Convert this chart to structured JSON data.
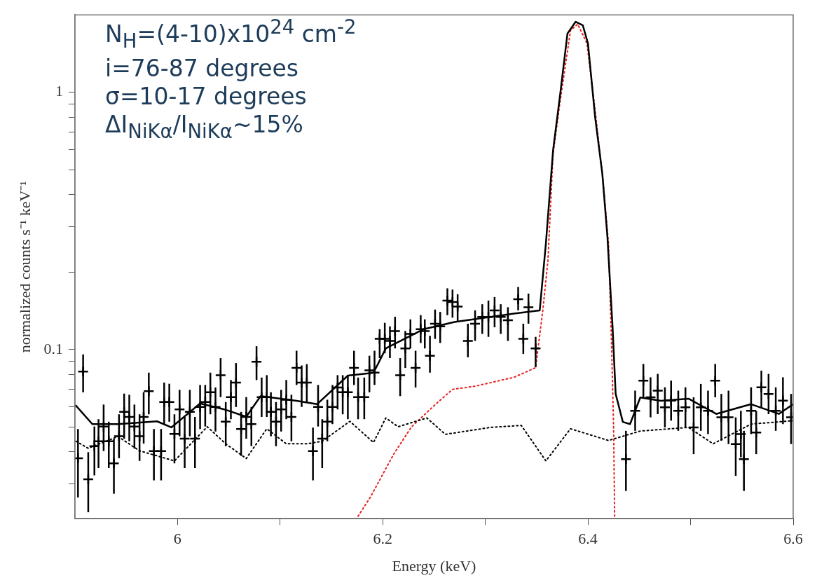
{
  "chart_data": {
    "type": "line",
    "xlabel": "Energy (keV)",
    "ylabel": "normalized counts s⁻¹ keV⁻¹",
    "annotations": [
      "N$_{H}$=(4-10)x10$^{24}$ cm$^{-2}$",
      "i=76-87 degrees",
      "σ=10-17 degrees",
      "ΔI$_{NiKα}$/I$_{NiKα}$~15%"
    ],
    "xlim": [
      5.9,
      6.6
    ],
    "xticks": [
      6,
      {
        "value": 6.1,
        "label": null
      },
      6.2,
      {
        "value": 6.3,
        "label": null
      },
      6.4,
      {
        "value": 6.5,
        "label": null
      },
      6.6
    ],
    "ylim": [
      0.022,
      2
    ],
    "yticks": [
      {
        "value": 0.03,
        "label": null
      },
      {
        "value": 0.04,
        "label": null
      },
      {
        "value": 0.05,
        "label": null
      },
      {
        "value": 0.06,
        "label": null
      },
      {
        "value": 0.07,
        "label": null
      },
      {
        "value": 0.08,
        "label": null
      },
      {
        "value": 0.09,
        "label": null
      },
      0.1,
      {
        "value": 0.2,
        "label": null
      },
      {
        "value": 0.3,
        "label": null
      },
      {
        "value": 0.4,
        "label": null
      },
      {
        "value": 0.5,
        "label": null
      },
      {
        "value": 0.6,
        "label": null
      },
      {
        "value": 0.7,
        "label": null
      },
      {
        "value": 0.8,
        "label": null
      },
      {
        "value": 0.9,
        "label": null
      },
      1
    ],
    "log": "y",
    "grid": false,
    "legend": false,
    "series": [
      {
        "type": "scatter",
        "color": "#000000",
        "marker": "cross",
        "x": [
          5.903,
          5.908,
          5.913,
          5.919,
          5.923,
          5.928,
          5.933,
          5.938,
          5.943,
          5.948,
          5.953,
          5.958,
          5.963,
          5.967,
          5.972,
          5.977,
          5.984,
          5.987,
          5.992,
          5.997,
          6.002,
          6.007,
          6.012,
          6.017,
          6.022,
          6.027,
          6.032,
          6.037,
          6.042,
          6.047,
          6.052,
          6.057,
          6.062,
          6.067,
          6.072,
          6.077,
          6.082,
          6.087,
          6.091,
          6.096,
          6.101,
          6.106,
          6.111,
          6.116,
          6.121,
          6.126,
          6.132,
          6.137,
          6.141,
          6.146,
          6.151,
          6.156,
          6.161,
          6.166,
          6.172,
          6.176,
          6.182,
          6.187,
          6.192,
          6.197,
          6.202,
          6.207,
          6.212,
          6.217,
          6.222,
          6.227,
          6.232,
          6.237,
          6.241,
          6.246,
          6.251,
          6.256,
          6.263,
          6.268,
          6.273,
          6.283,
          6.29,
          6.297,
          6.303,
          6.309,
          6.315,
          6.322,
          6.332,
          6.337,
          6.342,
          6.349,
          6.437,
          6.446,
          6.454,
          6.461,
          6.468,
          6.475,
          6.481,
          6.488,
          6.495,
          6.503,
          6.51,
          6.517,
          6.524,
          6.53,
          6.537,
          6.544,
          6.549,
          6.552,
          6.559,
          6.564,
          6.569,
          6.576,
          6.583,
          6.59,
          6.598
        ],
        "values": [
          0.0378,
          0.0821,
          0.0313,
          0.0421,
          0.044,
          0.0502,
          0.044,
          0.0361,
          0.046,
          0.0572,
          0.0547,
          0.0502,
          0.046,
          0.0547,
          0.0689,
          0.0403,
          0.0403,
          0.0625,
          0.0625,
          0.047,
          0.0585,
          0.045,
          0.0572,
          0.045,
          0.0598,
          0.0625,
          0.0682,
          0.0598,
          0.0795,
          0.0524,
          0.0653,
          0.0744,
          0.0491,
          0.0547,
          0.0513,
          0.0896,
          0.0653,
          0.0653,
          0.0572,
          0.0524,
          0.0585,
          0.0638,
          0.0547,
          0.0848,
          0.0744,
          0.0744,
          0.0403,
          0.0598,
          0.045,
          0.0524,
          0.0598,
          0.0712,
          0.0682,
          0.0682,
          0.0848,
          0.0653,
          0.0653,
          0.083,
          0.0813,
          0.11,
          0.11,
          0.108,
          0.118,
          0.0795,
          0.101,
          0.115,
          0.0848,
          0.12,
          0.118,
          0.0946,
          0.126,
          0.123,
          0.155,
          0.153,
          0.147,
          0.108,
          0.126,
          0.134,
          0.134,
          0.142,
          0.134,
          0.13,
          0.157,
          0.11,
          0.146,
          0.101,
          0.0375,
          0.0578,
          0.0757,
          0.0652,
          0.0692,
          0.0596,
          0.0633,
          0.0578,
          0.0596,
          0.0498,
          0.0596,
          0.0578,
          0.0757,
          0.0545,
          0.0545,
          0.0429,
          0.0469,
          0.0375,
          0.0578,
          0.0476,
          0.0713,
          0.0672,
          0.0578,
          0.0633,
          0.0545
        ],
        "errors": [
          [
            0.0266,
            0.0491
          ],
          [
            0.0682,
            0.0957
          ],
          [
            0.0233,
            0.0399
          ],
          [
            0.0324,
            0.0502
          ],
          [
            0.0346,
            0.0536
          ],
          [
            0.0403,
            0.0611
          ],
          [
            0.0346,
            0.0524
          ],
          [
            0.0275,
            0.045
          ],
          [
            0.0378,
            0.056
          ],
          [
            0.045,
            0.0674
          ],
          [
            0.044,
            0.0667
          ],
          [
            0.0412,
            0.0611
          ],
          [
            0.0369,
            0.056
          ],
          [
            0.0431,
            0.0682
          ],
          [
            0.056,
            0.0813
          ],
          [
            0.031,
            0.0491
          ],
          [
            0.031,
            0.0491
          ],
          [
            0.0513,
            0.0744
          ],
          [
            0.0524,
            0.0736
          ],
          [
            0.0361,
            0.056
          ],
          [
            0.046,
            0.0697
          ],
          [
            0.0346,
            0.0547
          ],
          [
            0.046,
            0.0697
          ],
          [
            0.0346,
            0.0547
          ],
          [
            0.0491,
            0.0728
          ],
          [
            0.0502,
            0.0728
          ],
          [
            0.056,
            0.0813
          ],
          [
            0.048,
            0.0712
          ],
          [
            0.0653,
            0.0926
          ],
          [
            0.0421,
            0.0625
          ],
          [
            0.0536,
            0.0761
          ],
          [
            0.0598,
            0.0886
          ],
          [
            0.0386,
            0.0572
          ],
          [
            0.045,
            0.0653
          ],
          [
            0.0421,
            0.0598
          ],
          [
            0.0761,
            0.103
          ],
          [
            0.0547,
            0.0778
          ],
          [
            0.0547,
            0.0795
          ],
          [
            0.046,
            0.0682
          ],
          [
            0.0421,
            0.0625
          ],
          [
            0.048,
            0.0697
          ],
          [
            0.0536,
            0.0761
          ],
          [
            0.044,
            0.0667
          ],
          [
            0.0728,
            0.0989
          ],
          [
            0.0598,
            0.0867
          ],
          [
            0.0625,
            0.0877
          ],
          [
            0.031,
            0.0497
          ],
          [
            0.0502,
            0.0728
          ],
          [
            0.0346,
            0.0536
          ],
          [
            0.044,
            0.0638
          ],
          [
            0.0513,
            0.0728
          ],
          [
            0.0585,
            0.0795
          ],
          [
            0.056,
            0.0795
          ],
          [
            0.0536,
            0.0795
          ],
          [
            0.0728,
            0.0989
          ],
          [
            0.0536,
            0.0778
          ],
          [
            0.0536,
            0.0778
          ],
          [
            0.0682,
            0.0946
          ],
          [
            0.0728,
            0.0989
          ],
          [
            0.0926,
            0.12
          ],
          [
            0.0967,
            0.127
          ],
          [
            0.0926,
            0.123
          ],
          [
            0.101,
            0.134
          ],
          [
            0.0659,
            0.0926
          ],
          [
            0.0848,
            0.118
          ],
          [
            0.101,
            0.131
          ],
          [
            0.0712,
            0.0989
          ],
          [
            0.106,
            0.136
          ],
          [
            0.101,
            0.131
          ],
          [
            0.0813,
            0.113
          ],
          [
            0.11,
            0.143
          ],
          [
            0.106,
            0.14
          ],
          [
            0.136,
            0.173
          ],
          [
            0.133,
            0.171
          ],
          [
            0.129,
            0.164
          ],
          [
            0.0933,
            0.126
          ],
          [
            0.108,
            0.142
          ],
          [
            0.115,
            0.15
          ],
          [
            0.112,
            0.155
          ],
          [
            0.122,
            0.16
          ],
          [
            0.115,
            0.15
          ],
          [
            0.108,
            0.146
          ],
          [
            0.142,
            0.175
          ],
          [
            0.0961,
            0.126
          ],
          [
            0.126,
            0.165
          ],
          [
            0.0853,
            0.112
          ],
          [
            0.0282,
            0.0483
          ],
          [
            0.0483,
            0.0692
          ],
          [
            0.0652,
            0.0879
          ],
          [
            0.0545,
            0.078
          ],
          [
            0.0561,
            0.0804
          ],
          [
            0.0498,
            0.0713
          ],
          [
            0.0529,
            0.0757
          ],
          [
            0.0483,
            0.0692
          ],
          [
            0.0498,
            0.0713
          ],
          [
            0.0392,
            0.0652
          ],
          [
            0.0483,
            0.0735
          ],
          [
            0.0469,
            0.0692
          ],
          [
            0.0652,
            0.0879
          ],
          [
            0.0442,
            0.0672
          ],
          [
            0.0429,
            0.0692
          ],
          [
            0.0323,
            0.0545
          ],
          [
            0.0381,
            0.0578
          ],
          [
            0.0282,
            0.0483
          ],
          [
            0.0469,
            0.0713
          ],
          [
            0.0392,
            0.0578
          ],
          [
            0.0596,
            0.0828
          ],
          [
            0.0561,
            0.0804
          ],
          [
            0.0483,
            0.0713
          ],
          [
            0.0513,
            0.078
          ],
          [
            0.0429,
            0.0672
          ]
        ]
      },
      {
        "color": "#000000",
        "line_style": "solid",
        "x": [
          5.901,
          5.917,
          5.942,
          5.98,
          5.994,
          6.022,
          6.047,
          6.067,
          6.081,
          6.116,
          6.136,
          6.166,
          6.191,
          6.203,
          6.24,
          6.27,
          6.328,
          6.353,
          6.359,
          6.366,
          6.373,
          6.38,
          6.388,
          6.395,
          6.4,
          6.407,
          6.414,
          6.419,
          6.424,
          6.427,
          6.434,
          6.441,
          6.451,
          6.471,
          6.498,
          6.525,
          6.559,
          6.586,
          6.6
        ],
        "values": [
          0.0605,
          0.0513,
          0.0513,
          0.0526,
          0.0498,
          0.0617,
          0.0583,
          0.0548,
          0.0659,
          0.0632,
          0.0613,
          0.0792,
          0.0812,
          0.101,
          0.12,
          0.128,
          0.138,
          0.142,
          0.258,
          0.594,
          0.988,
          1.69,
          1.88,
          1.82,
          1.55,
          0.8,
          0.483,
          0.273,
          0.122,
          0.0672,
          0.0523,
          0.0513,
          0.0651,
          0.0632,
          0.0644,
          0.0562,
          0.0613,
          0.0562,
          0.0613
        ]
      },
      {
        "color": "#000000",
        "line_style": "dotted",
        "x": [
          5.901,
          5.913,
          5.942,
          5.963,
          5.997,
          6.029,
          6.047,
          6.067,
          6.087,
          6.106,
          6.126,
          6.141,
          6.168,
          6.191,
          6.203,
          6.215,
          6.243,
          6.261,
          6.305,
          6.335,
          6.359,
          6.383,
          6.42,
          6.451,
          6.498,
          6.522,
          6.559,
          6.6
        ],
        "values": [
          0.044,
          0.0413,
          0.0459,
          0.0404,
          0.0369,
          0.0501,
          0.043,
          0.0377,
          0.0492,
          0.043,
          0.043,
          0.044,
          0.0526,
          0.0435,
          0.0542,
          0.0501,
          0.0542,
          0.0468,
          0.0498,
          0.0507,
          0.0369,
          0.0492,
          0.0443,
          0.0482,
          0.0498,
          0.043,
          0.0513,
          0.0529
        ]
      },
      {
        "color": "#e8201f",
        "line_style": "dotted",
        "x": [
          6.176,
          6.188,
          6.211,
          6.228,
          6.251,
          6.268,
          6.29,
          6.328,
          6.349,
          6.356,
          6.361,
          6.366,
          6.373,
          6.383,
          6.39,
          6.399,
          6.407,
          6.415,
          6.42,
          6.423,
          6.425,
          6.426
        ],
        "values": [
          0.0225,
          0.0267,
          0.0394,
          0.05,
          0.061,
          0.07,
          0.072,
          0.078,
          0.085,
          0.142,
          0.222,
          0.576,
          0.93,
          1.74,
          1.84,
          1.55,
          0.85,
          0.44,
          0.258,
          0.105,
          0.0498,
          0.0225
        ]
      }
    ]
  }
}
